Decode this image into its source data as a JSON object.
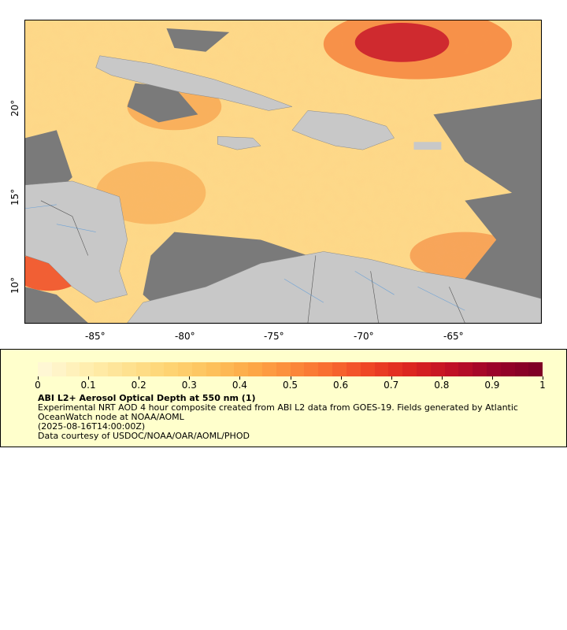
{
  "map": {
    "x_ticks": [
      "-85°",
      "-80°",
      "-75°",
      "-70°",
      "-65°"
    ],
    "y_ticks": [
      "20°",
      "15°",
      "10°"
    ]
  },
  "legend": {
    "colorbar_ticks": [
      "0",
      "0.1",
      "0.2",
      "0.3",
      "0.4",
      "0.5",
      "0.6",
      "0.7",
      "0.8",
      "0.9",
      "1"
    ],
    "title": "ABI L2+ Aerosol Optical Depth at 550 nm (1)",
    "line1": "Experimental NRT AOD 4 hour composite created from ABI L2 data from GOES-19. Fields generated by Atlantic OceanWatch node at NOAA/AOML",
    "line2": "(2025-08-16T14:00:00Z)",
    "line3": "Data courtesy of USDOC/NOAA/OAR/AOML/PHOD"
  },
  "colors": {
    "land": "#c8c8c8",
    "no_data": "#7a7a7a",
    "panel": "#ffffcc",
    "scale": [
      "#fff7d4",
      "#ffeeb0",
      "#fee291",
      "#fed474",
      "#fdc35e",
      "#fdaa48",
      "#fc8c3b",
      "#f86a2f",
      "#ee4225",
      "#da2320",
      "#be0f26",
      "#9a0329",
      "#800026"
    ]
  }
}
